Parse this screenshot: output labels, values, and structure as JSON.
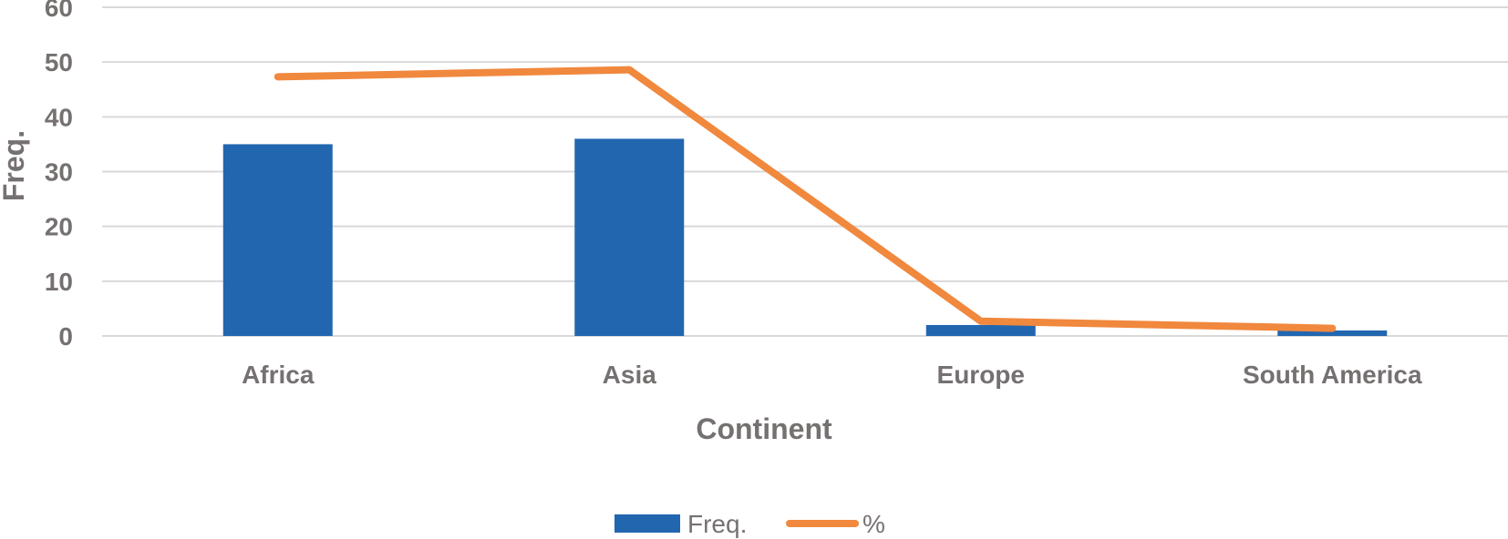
{
  "chart_data": {
    "type": "bar",
    "categories": [
      "Africa",
      "Asia",
      "Europe",
      "South America"
    ],
    "series": [
      {
        "name": "Freq.",
        "type": "bar",
        "values": [
          35,
          36,
          2,
          1
        ],
        "color": "#2266b0"
      },
      {
        "name": "%",
        "type": "line",
        "values": [
          47.3,
          48.6,
          2.7,
          1.4
        ],
        "color": "#f0883e"
      }
    ],
    "xlabel": "Continent",
    "ylabel": "Freq.",
    "ylim": [
      0,
      60
    ],
    "yticks": [
      "0",
      "10",
      "20",
      "30",
      "40",
      "50",
      "60"
    ],
    "grid": true,
    "legend": "bottom",
    "gridColor": "#d9d9d9",
    "textColor": "#767171"
  }
}
